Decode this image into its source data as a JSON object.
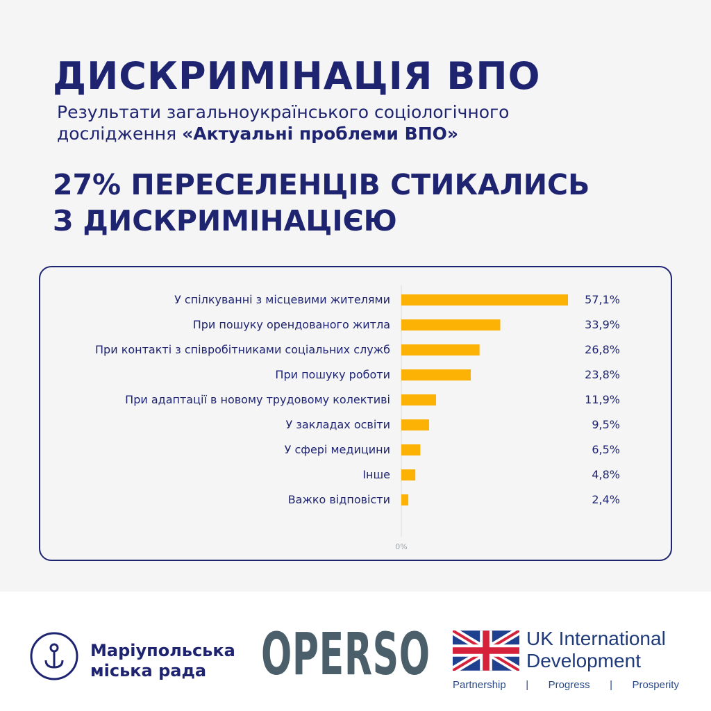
{
  "header": {
    "title": "ДИСКРИМІНАЦІЯ ВПО",
    "subtitle_line1": "Результати загальноукраїнського соціологічного",
    "subtitle_line2_prefix": "дослідження ",
    "subtitle_line2_bold": "«Актуальні проблеми ВПО»",
    "headline_line1": "27% ПЕРЕСЕЛЕНЦІВ СТИКАЛИСЬ",
    "headline_line2": "З ДИСКРИМІНАЦІЄЮ"
  },
  "chart_data": {
    "type": "bar",
    "orientation": "horizontal",
    "categories": [
      "У спілкуванні з місцевими жителями",
      "При пошуку орендованого житла",
      "При контакті з співробітниками соціальних служб",
      "При пошуку роботи",
      "При адаптації в новому трудовому колективі",
      "У закладах освіти",
      "У сфері медицини",
      "Інше",
      "Важко відповісти"
    ],
    "values": [
      57.1,
      33.9,
      26.8,
      23.8,
      11.9,
      9.5,
      6.5,
      4.8,
      2.4
    ],
    "value_labels": [
      "57,1%",
      "33,9%",
      "26,8%",
      "23,8%",
      "11,9%",
      "9,5%",
      "6,5%",
      "4,8%",
      "2,4%"
    ],
    "x_tick_labels": [
      "0%"
    ],
    "xlim": [
      0,
      57.1
    ],
    "bar_color": "#fbb204",
    "grid": false
  },
  "footer": {
    "mariupol_line1": "Маріупольська",
    "mariupol_line2": "міська рада",
    "operso": "OPERSO",
    "uk_line1": "UK International",
    "uk_line2": "Development",
    "uk_tagline": [
      "Partnership",
      "|",
      "Progress",
      "|",
      "Prosperity"
    ]
  },
  "colors": {
    "navy": "#1e2470",
    "bar": "#fbb204",
    "operso": "#4a5f6a"
  }
}
